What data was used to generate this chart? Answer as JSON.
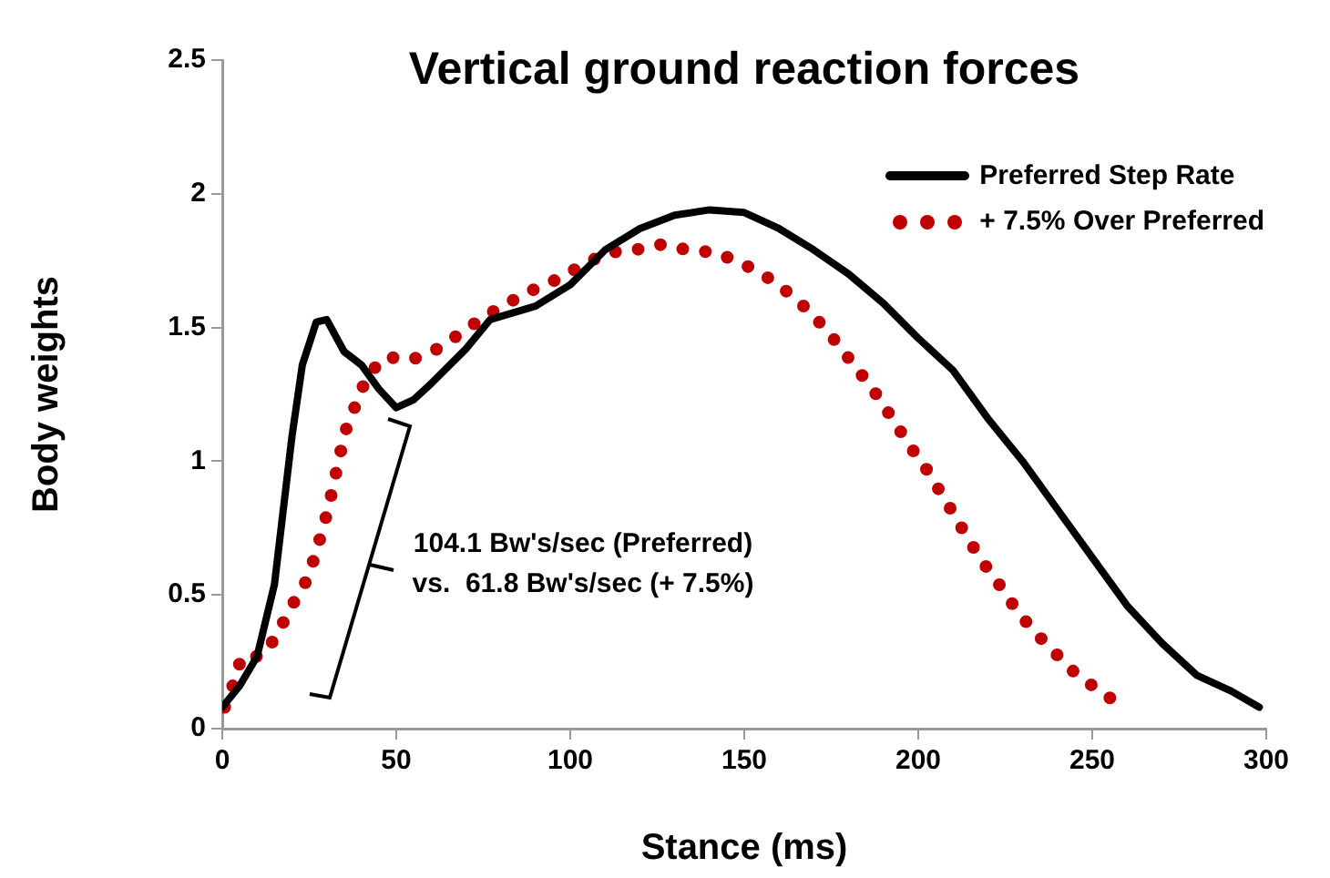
{
  "chart_data": {
    "type": "line",
    "title": "Vertical ground reaction forces",
    "xlabel": "Stance (ms)",
    "ylabel": "Body weights",
    "xlim": [
      0,
      300
    ],
    "xticks": [
      0,
      50,
      100,
      150,
      200,
      250,
      300
    ],
    "ylim": [
      0,
      2.5
    ],
    "yticks": [
      0,
      0.5,
      1,
      1.5,
      2,
      2.5
    ],
    "grid": false,
    "legend": "top right",
    "annotations": [
      "104.1 Bw's/sec (Preferred)",
      "vs.  61.8 Bw's/sec (+ 7.5%)"
    ],
    "series": [
      {
        "name": "Preferred Step Rate",
        "color": "#000000",
        "line_style": "solid",
        "x": [
          0,
          5,
          10,
          15,
          20,
          23,
          27,
          30,
          35,
          40,
          45,
          50,
          55,
          60,
          70,
          77,
          90,
          100,
          110,
          120,
          130,
          140,
          150,
          160,
          170,
          180,
          190,
          200,
          210,
          220,
          230,
          240,
          250,
          260,
          270,
          280,
          290,
          298
        ],
        "values": [
          0.08,
          0.16,
          0.27,
          0.54,
          1.09,
          1.36,
          1.52,
          1.53,
          1.41,
          1.36,
          1.27,
          1.2,
          1.23,
          1.29,
          1.42,
          1.53,
          1.58,
          1.66,
          1.79,
          1.87,
          1.92,
          1.94,
          1.93,
          1.87,
          1.79,
          1.7,
          1.59,
          1.46,
          1.34,
          1.16,
          1.0,
          0.82,
          0.64,
          0.46,
          0.32,
          0.2,
          0.14,
          0.08
        ]
      },
      {
        "name": "+ 7.5% Over Preferred",
        "color": "#c00000",
        "line_style": "dotted",
        "x": [
          0.7,
          3.3,
          5.6,
          11.2,
          15.9,
          19,
          23.4,
          26,
          28.3,
          30.4,
          32.1,
          33.9,
          35.6,
          38.6,
          41.7,
          46.8,
          54.5,
          61.8,
          68.7,
          75.2,
          81.8,
          89.2,
          96.2,
          103.1,
          110.6,
          118.5,
          126,
          133.8,
          141.7,
          149.4,
          156.4,
          162.7,
          168.8,
          174.3,
          179.1,
          183.9,
          188.5,
          193,
          197.4,
          201.9,
          206.1,
          210.3,
          214.3,
          218.7,
          223.2,
          227.9,
          232.8,
          238.1,
          244,
          250.1,
          256.7
        ],
        "values": [
          0.08,
          0.17,
          0.27,
          0.27,
          0.35,
          0.44,
          0.53,
          0.62,
          0.72,
          0.82,
          0.92,
          1.03,
          1.12,
          1.22,
          1.32,
          1.39,
          1.38,
          1.42,
          1.48,
          1.54,
          1.59,
          1.64,
          1.68,
          1.73,
          1.78,
          1.79,
          1.81,
          1.79,
          1.78,
          1.74,
          1.69,
          1.63,
          1.56,
          1.48,
          1.4,
          1.32,
          1.24,
          1.15,
          1.06,
          0.98,
          0.89,
          0.8,
          0.71,
          0.62,
          0.54,
          0.45,
          0.37,
          0.3,
          0.22,
          0.16,
          0.1
        ]
      }
    ]
  }
}
